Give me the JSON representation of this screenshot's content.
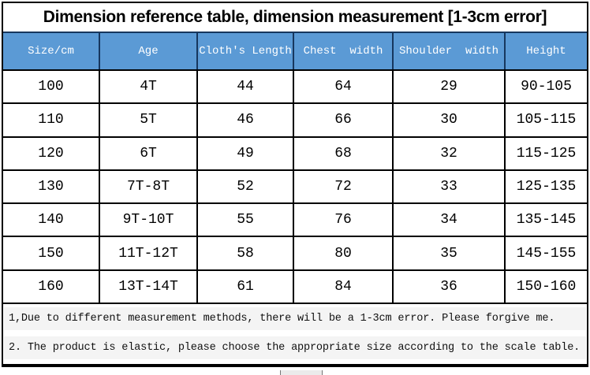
{
  "title": "Dimension reference table, dimension measurement [1-3cm error]",
  "colors": {
    "header_bg": "#5B9AD5",
    "header_divider": "#17375E",
    "header_text": "#FFFFFF",
    "grid_line": "#000000",
    "note_bg": "#F4F4F4"
  },
  "table": {
    "headers": [
      "Size/cm",
      "Age",
      "Cloth's Length",
      "Chest  width",
      "Shoulder  width",
      "Height"
    ],
    "rows": [
      [
        "100",
        "4T",
        "44",
        "64",
        "29",
        "90-105"
      ],
      [
        "110",
        "5T",
        "46",
        "66",
        "30",
        "105-115"
      ],
      [
        "120",
        "6T",
        "49",
        "68",
        "32",
        "115-125"
      ],
      [
        "130",
        "7T-8T",
        "52",
        "72",
        "33",
        "125-135"
      ],
      [
        "140",
        "9T-10T",
        "55",
        "76",
        "34",
        "135-145"
      ],
      [
        "150",
        "11T-12T",
        "58",
        "80",
        "35",
        "145-155"
      ],
      [
        "160",
        "13T-14T",
        "61",
        "84",
        "36",
        "150-160"
      ]
    ]
  },
  "notes": [
    "1,Due to different measurement methods, there will be a 1-3cm error. Please forgive me.",
    "2. The product is elastic, please choose the appropriate size according to the scale table."
  ]
}
